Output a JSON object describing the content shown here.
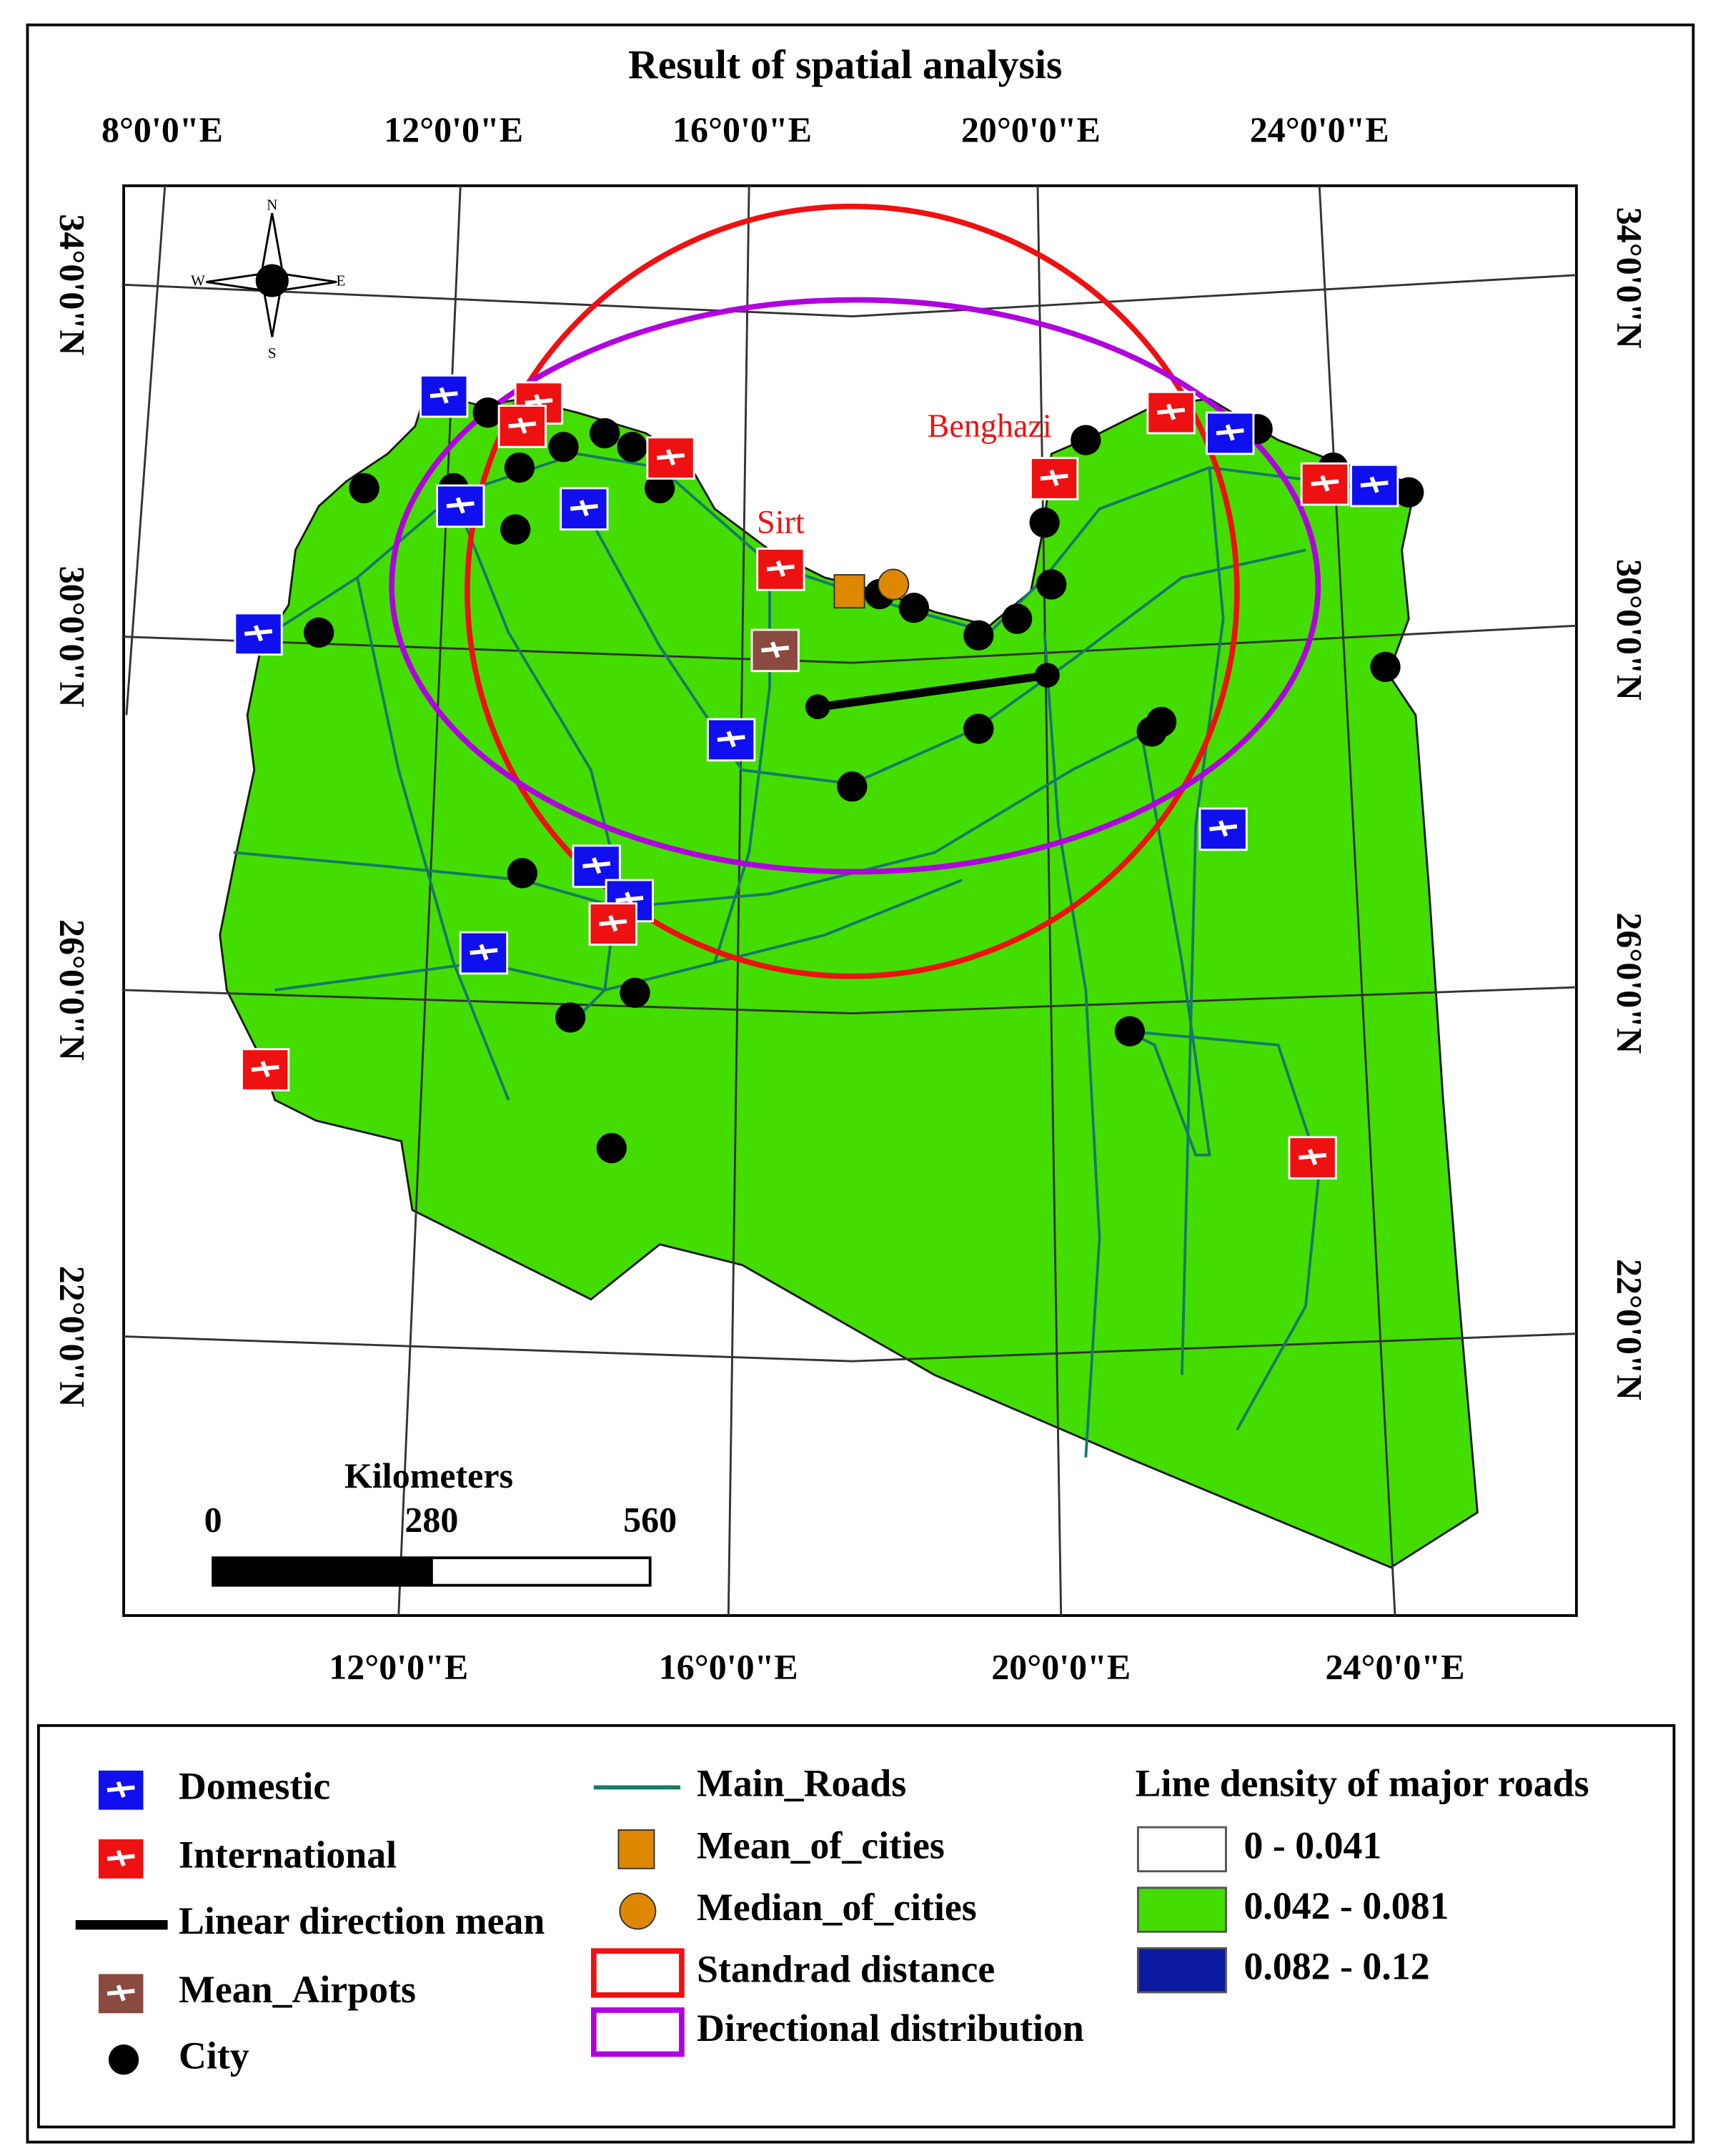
{
  "title": "Result of spatial analysis",
  "longitude_labels_top": [
    "8°0'0\"E",
    "12°0'0\"E",
    "16°0'0\"E",
    "20°0'0\"E",
    "24°0'0\"E"
  ],
  "longitude_labels_bottom": [
    "12°0'0\"E",
    "16°0'0\"E",
    "20°0'0\"E",
    "24°0'0\"E"
  ],
  "latitude_labels_left": [
    "34°0'0\"N",
    "30°0'0\"N",
    "26°0'0\"N",
    "22°0'0\"N"
  ],
  "latitude_labels_right": [
    "34°0'0\"N",
    "30°0'0\"N",
    "26°0'0\"N",
    "22°0'0\"N"
  ],
  "place_labels": [
    "Benghazi",
    "Sirt"
  ],
  "scale_bar": {
    "unit": "Kilometers",
    "ticks": [
      0,
      280,
      560
    ]
  },
  "legend": {
    "symbols": [
      "Domestic",
      "International",
      "Linear direction mean",
      "Mean_Airpots",
      "City",
      "Main_Roads",
      "Mean_of_cities",
      "Median_of_cities",
      "Standrad distance",
      "Directional distribution"
    ],
    "density": {
      "title": "Line density of major roads",
      "classes": [
        "0 - 0.041",
        "0.042 - 0.081",
        "0.082 - 0.12"
      ]
    }
  }
}
